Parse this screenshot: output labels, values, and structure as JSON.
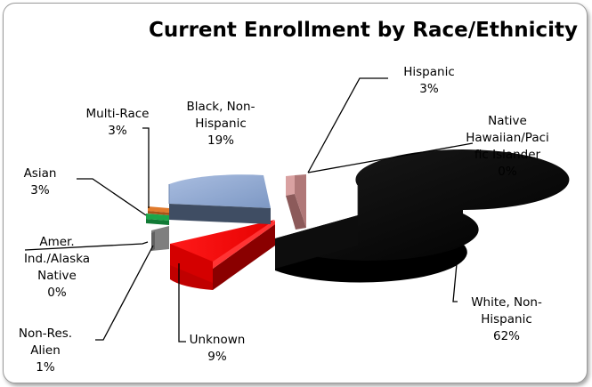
{
  "chart_data": {
    "type": "pie",
    "style": "3d-exploded",
    "title": "Current Enrollment by Race/Ethnicity",
    "slices": [
      {
        "name": "White, Non-Hispanic",
        "value": 62,
        "label": [
          "White, Non-",
          "Hispanic",
          "62%"
        ],
        "color": "#000000"
      },
      {
        "name": "Unknown",
        "value": 9,
        "label": [
          "Unknown",
          "9%"
        ],
        "color": "#ff0000"
      },
      {
        "name": "Non-Res. Alien",
        "value": 1,
        "label": [
          "Non-Res.",
          "Alien",
          "1%"
        ],
        "color": "#7f7f7f"
      },
      {
        "name": "Amer. Ind./Alaska Native",
        "value": 0,
        "label": [
          "Amer.",
          "Ind./Alaska",
          "Native",
          "0%"
        ],
        "color": "#5a5a5a"
      },
      {
        "name": "Asian",
        "value": 3,
        "label": [
          "Asian",
          "3%"
        ],
        "color": "#1aa64a"
      },
      {
        "name": "Multi-Race",
        "value": 3,
        "label": [
          "Multi-Race",
          "3%"
        ],
        "color": "#e07a2c"
      },
      {
        "name": "Black, Non-Hispanic",
        "value": 19,
        "label": [
          "Black, Non-",
          "Hispanic",
          "19%"
        ],
        "color": "#8fa8cf"
      },
      {
        "name": "Native Hawaiian/Pacific Islander",
        "value": 0,
        "label": [
          "Native",
          "Hawaiian/Paci",
          "fic Islander",
          "0%"
        ],
        "color": "#aaaaaa"
      },
      {
        "name": "Hispanic",
        "value": 3,
        "label": [
          "Hispanic",
          "3%"
        ],
        "color": "#d9a1a1"
      }
    ]
  }
}
